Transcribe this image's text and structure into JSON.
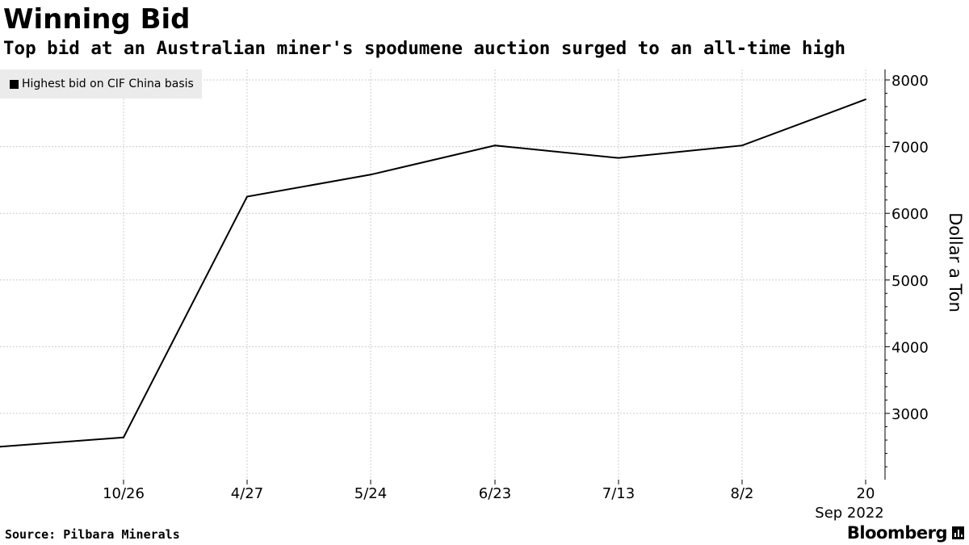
{
  "title": "Winning Bid",
  "subtitle": "Top bid at an Australian miner's spodumene auction surged to an all-time high",
  "legend": {
    "label": "Highest bid on CIF China basis"
  },
  "footer": {
    "source": "Source: Pilbara Minerals",
    "brand": "Bloomberg"
  },
  "colors": {
    "line": "#000000",
    "grid": "#cccccc",
    "legend_bg": "#ebebeb"
  },
  "chart_data": {
    "type": "line",
    "title": "Winning Bid",
    "subtitle": "Top bid at an Australian miner's spodumene auction surged to an all-time high",
    "ylabel": "Dollar a Ton",
    "xlabel": "",
    "categories": [
      "",
      "10/26",
      "4/27",
      "5/24",
      "6/23",
      "7/13",
      "8/2",
      "20"
    ],
    "x_sublabels": [
      {
        "under": "20",
        "text": "Sep 2022"
      }
    ],
    "series": [
      {
        "name": "Highest bid on CIF China basis",
        "values": [
          2500,
          2640,
          6250,
          6580,
          7017,
          6830,
          7017,
          7708
        ]
      }
    ],
    "ylim": [
      2000,
      8200
    ],
    "yticks": [
      3000,
      4000,
      5000,
      6000,
      7000,
      8000
    ],
    "y_axis_side": "right",
    "grid": true,
    "legend_position": "top-left"
  }
}
